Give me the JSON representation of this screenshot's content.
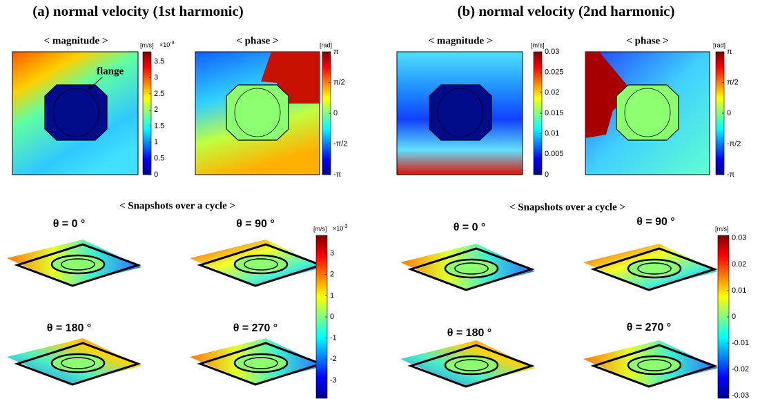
{
  "panels": [
    {
      "title": "(a) normal velocity (1st harmonic)",
      "magnitude": {
        "label": "< magnitude >",
        "annotation": "flange",
        "colorbar": {
          "unit": "[m/s]",
          "multiplier": "×10",
          "exponent": "-3",
          "range": [
            0,
            3.8
          ],
          "ticks": [
            0,
            0.5,
            1,
            1.5,
            2,
            2.5,
            3,
            3.5
          ]
        }
      },
      "phase": {
        "label": "< phase >",
        "colorbar": {
          "unit": "[rad]",
          "range": [
            -3.1416,
            3.1416
          ],
          "ticks": [
            {
              "value": -3.1416,
              "label": "-π"
            },
            {
              "value": -1.5708,
              "label": "-π/2"
            },
            0,
            {
              "value": 1.5708,
              "label": "π/2"
            },
            {
              "value": 3.1416,
              "label": "π"
            }
          ]
        }
      },
      "snapshots": {
        "label": "< Snapshots over a cycle >",
        "frames": [
          "θ = 0 °",
          "θ = 90 °",
          "θ = 180 °",
          "θ = 270 °"
        ],
        "colorbar": {
          "unit": "[m/s]",
          "multiplier": "×10",
          "exponent": "-3",
          "range": [
            -3.85,
            3.85
          ],
          "ticks": [
            -3,
            -2,
            -1,
            0,
            1,
            2,
            3
          ]
        }
      }
    },
    {
      "title": "(b) normal velocity (2nd harmonic)",
      "magnitude": {
        "label": "< magnitude >",
        "colorbar": {
          "unit": "[m/s]",
          "range": [
            0,
            0.03
          ],
          "ticks": [
            0,
            0.005,
            0.01,
            0.015,
            0.02,
            0.025,
            0.03
          ]
        }
      },
      "phase": {
        "label": "< phase >",
        "colorbar": {
          "unit": "[rad]",
          "range": [
            -3.1416,
            3.1416
          ],
          "ticks": [
            {
              "value": -3.1416,
              "label": "-π"
            },
            {
              "value": -1.5708,
              "label": "-π/2"
            },
            0,
            {
              "value": 1.5708,
              "label": "π/2"
            },
            {
              "value": 3.1416,
              "label": "π"
            }
          ]
        }
      },
      "snapshots": {
        "label": "< Snapshots over a cycle >",
        "frames": [
          "θ = 0 °",
          "θ = 90 °",
          "θ = 180 °",
          "θ = 270 °"
        ],
        "colorbar": {
          "unit": "[m/s]",
          "range": [
            -0.031,
            0.031
          ],
          "ticks": [
            -0.03,
            -0.02,
            -0.01,
            0,
            0.01,
            0.02,
            0.03
          ]
        }
      }
    }
  ]
}
